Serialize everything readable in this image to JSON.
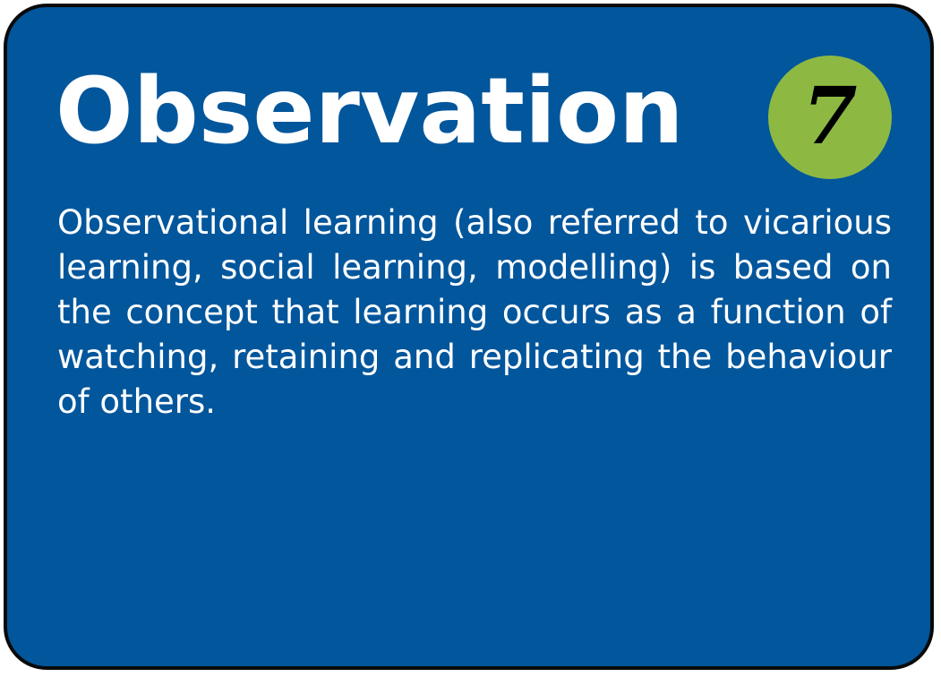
{
  "card": {
    "title": "Observation",
    "badge_number": "7",
    "description": "Observational learning (also referred to vicar­ious learning, social learning, modelling) is based on the concept that learning occurs as a function of watching, retaining and replicating the behaviour of others."
  },
  "colors": {
    "card_background": "#02569c",
    "card_border": "#0a0a0a",
    "badge_background": "#8db943",
    "text": "#ffffff",
    "badge_text": "#000000"
  }
}
